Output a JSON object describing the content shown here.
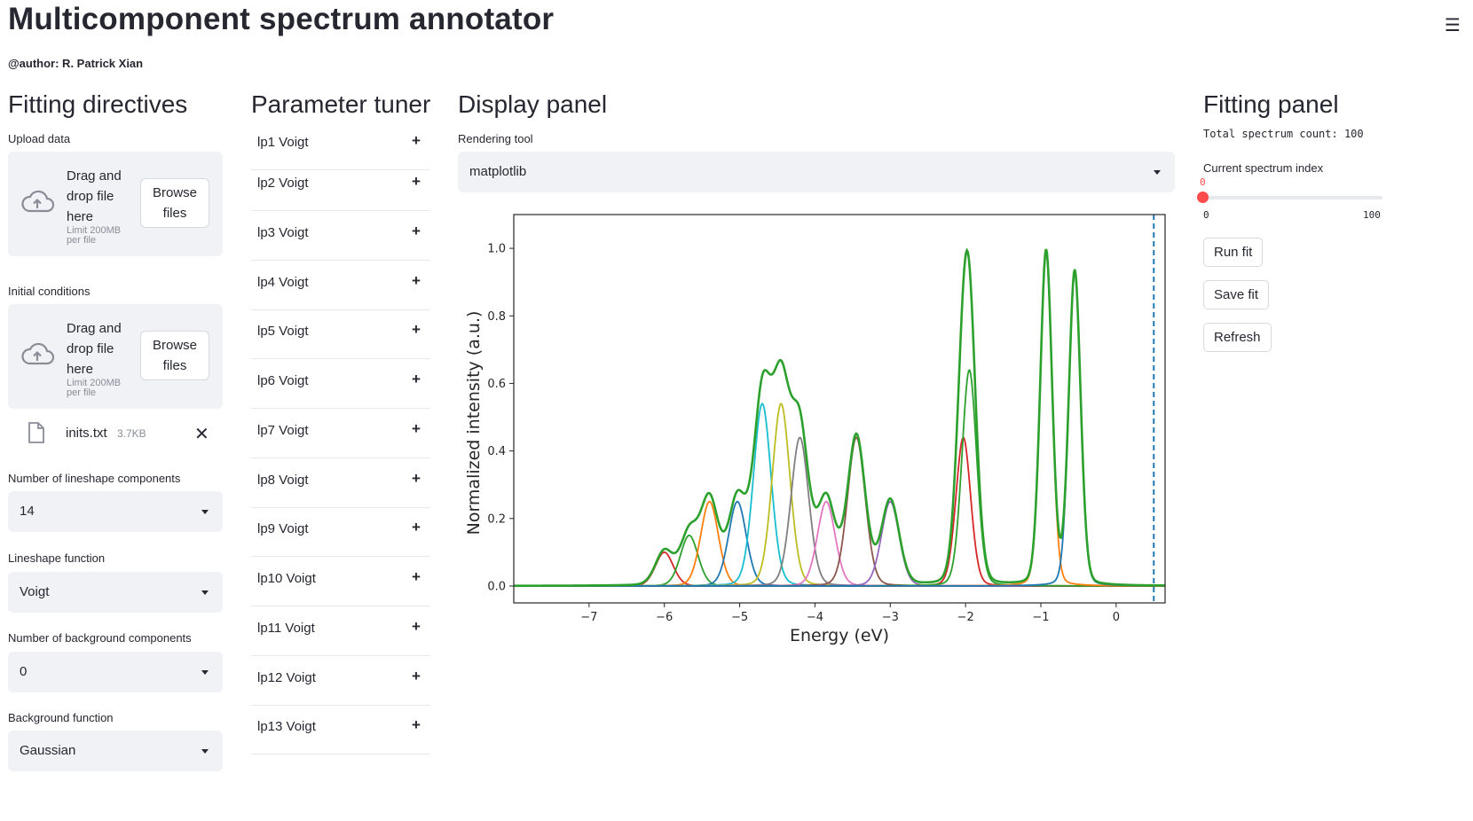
{
  "header": {
    "title": "Multicomponent spectrum annotator",
    "author": "@author: R. Patrick Xian",
    "menu_icon": "hamburger-icon"
  },
  "fitting_directives": {
    "title": "Fitting directives",
    "upload_data": {
      "label": "Upload data",
      "drag_text": "Drag and drop file here",
      "limit_text": "Limit 200MB per file",
      "browse_label": "Browse files"
    },
    "initial_conditions": {
      "label": "Initial conditions",
      "drag_text": "Drag and drop file here",
      "limit_text": "Limit 200MB per file",
      "browse_label": "Browse files",
      "file": {
        "name": "inits.txt",
        "size": "3.7KB"
      }
    },
    "num_lineshape": {
      "label": "Number of lineshape components",
      "value": "14"
    },
    "lineshape_function": {
      "label": "Lineshape function",
      "value": "Voigt"
    },
    "num_background": {
      "label": "Number of background components",
      "value": "0"
    },
    "background_function": {
      "label": "Background function",
      "value": "Gaussian"
    }
  },
  "parameter_tuner": {
    "title": "Parameter tuner",
    "items": [
      {
        "label": "lp1 Voigt"
      },
      {
        "label": "lp2 Voigt"
      },
      {
        "label": "lp3 Voigt"
      },
      {
        "label": "lp4 Voigt"
      },
      {
        "label": "lp5 Voigt"
      },
      {
        "label": "lp6 Voigt"
      },
      {
        "label": "lp7 Voigt"
      },
      {
        "label": "lp8 Voigt"
      },
      {
        "label": "lp9 Voigt"
      },
      {
        "label": "lp10 Voigt"
      },
      {
        "label": "lp11 Voigt"
      },
      {
        "label": "lp12 Voigt"
      },
      {
        "label": "lp13 Voigt"
      }
    ],
    "expand_symbol": "+"
  },
  "display_panel": {
    "title": "Display panel",
    "rendering_label": "Rendering tool",
    "rendering_value": "matplotlib"
  },
  "fitting_panel": {
    "title": "Fitting panel",
    "total_count": "Total spectrum count: 100",
    "index_label": "Current spectrum index",
    "index_value": "0",
    "index_min": "0",
    "index_max": "100",
    "run_label": "Run fit",
    "save_label": "Save fit",
    "refresh_label": "Refresh"
  },
  "chart_data": {
    "type": "line",
    "title": "",
    "xlabel": "Energy (eV)",
    "ylabel": "Normalized intensity (a.u.)",
    "xlim": [
      -8.0,
      0.65
    ],
    "ylim": [
      -0.05,
      1.1
    ],
    "xticks": [
      -7,
      -6,
      -5,
      -4,
      -3,
      -2,
      -1,
      0
    ],
    "yticks": [
      0.0,
      0.2,
      0.4,
      0.6,
      0.8,
      1.0
    ],
    "vline": {
      "x": 0.5,
      "style": "dashed",
      "color": "#1f77b4"
    },
    "legend": "none",
    "components": [
      {
        "center": -6.0,
        "amplitude": 0.1,
        "width": 0.12,
        "color": "#d62728"
      },
      {
        "center": -5.67,
        "amplitude": 0.15,
        "width": 0.12,
        "color": "#2ca02c"
      },
      {
        "center": -5.4,
        "amplitude": 0.25,
        "width": 0.12,
        "color": "#ff7f0e"
      },
      {
        "center": -5.03,
        "amplitude": 0.25,
        "width": 0.12,
        "color": "#1f77b4"
      },
      {
        "center": -4.7,
        "amplitude": 0.54,
        "width": 0.12,
        "color": "#17becf"
      },
      {
        "center": -4.45,
        "amplitude": 0.54,
        "width": 0.12,
        "color": "#bcbd22"
      },
      {
        "center": -4.2,
        "amplitude": 0.44,
        "width": 0.12,
        "color": "#7f7f7f"
      },
      {
        "center": -3.85,
        "amplitude": 0.25,
        "width": 0.12,
        "color": "#e377c2"
      },
      {
        "center": -3.45,
        "amplitude": 0.44,
        "width": 0.12,
        "color": "#8c564b"
      },
      {
        "center": -3.0,
        "amplitude": 0.25,
        "width": 0.12,
        "color": "#9467bd"
      },
      {
        "center": -2.03,
        "amplitude": 0.44,
        "width": 0.1,
        "color": "#d62728"
      },
      {
        "center": -1.95,
        "amplitude": 0.64,
        "width": 0.1,
        "color": "#2ca02c"
      },
      {
        "center": -0.93,
        "amplitude": 0.99,
        "width": 0.08,
        "color": "#ff7f0e"
      },
      {
        "center": -0.55,
        "amplitude": 0.93,
        "width": 0.08,
        "color": "#1f77b4"
      }
    ],
    "total_color": "#2ca02c"
  }
}
